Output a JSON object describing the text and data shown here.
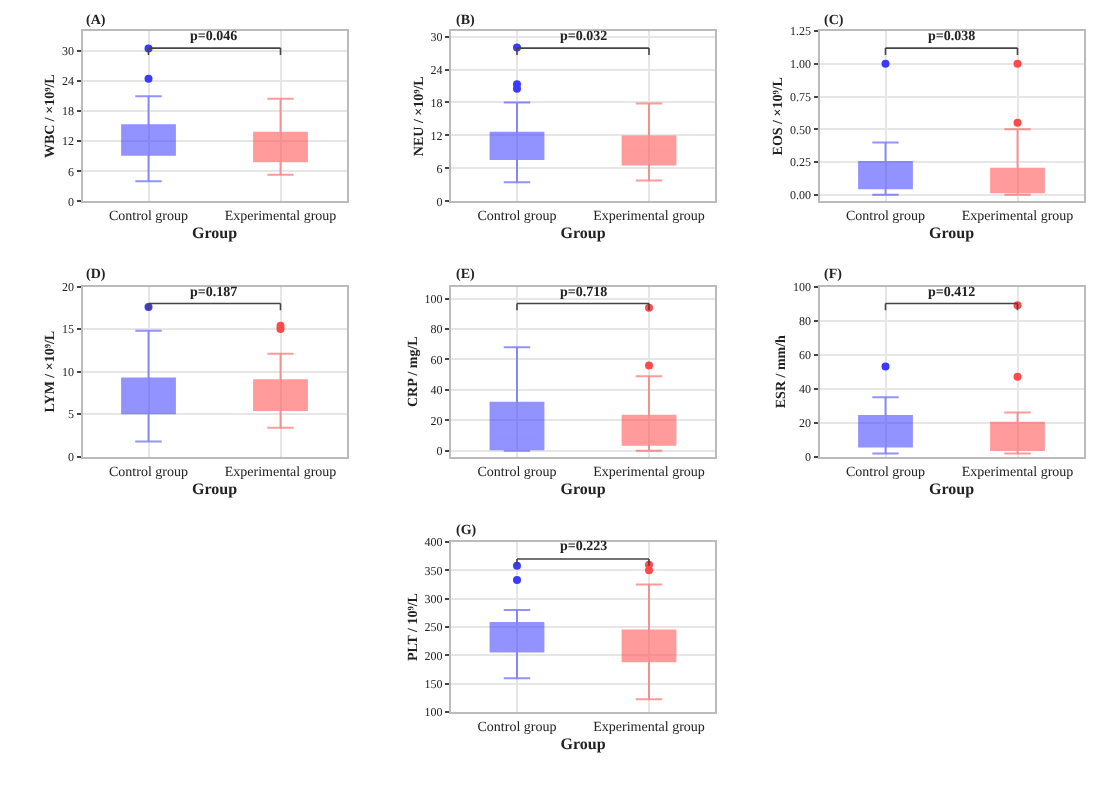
{
  "chart_data": [
    {
      "type": "box",
      "title": "(A)",
      "xlabel": "Group",
      "ylabel": "WBC / ×10⁹/L",
      "annotations": [
        "p=0.046"
      ],
      "categories": [
        "Control group",
        "Experimental group"
      ],
      "colors": [
        "#3b3bff",
        "#ff4a4a"
      ],
      "ylim": [
        0,
        34
      ],
      "yticks": [
        0,
        6,
        12,
        18,
        24,
        30
      ],
      "grid": true,
      "boxes": [
        {
          "low": 4,
          "q1": 9.3,
          "median": 13.2,
          "q3": 15.2,
          "high": 21,
          "outliers": [
            24.5,
            30.5
          ]
        },
        {
          "low": 5.3,
          "q1": 8,
          "median": 11.3,
          "q3": 13.7,
          "high": 20.5
        }
      ]
    },
    {
      "type": "box",
      "title": "(B)",
      "xlabel": "Group",
      "ylabel": "NEU / ×10⁹/L",
      "annotations": [
        "p=0.032"
      ],
      "categories": [
        "Control group",
        "Experimental group"
      ],
      "colors": [
        "#3b3bff",
        "#ff4a4a"
      ],
      "ylim": [
        0,
        31
      ],
      "yticks": [
        0,
        6,
        12,
        18,
        24,
        30
      ],
      "grid": true,
      "boxes": [
        {
          "low": 3.5,
          "q1": 7.7,
          "median": 9.5,
          "q3": 12.5,
          "high": 18,
          "outliers": [
            20.5,
            21.3,
            28
          ]
        },
        {
          "low": 3.8,
          "q1": 6.7,
          "median": 9.2,
          "q3": 11.8,
          "high": 17.8
        }
      ]
    },
    {
      "type": "box",
      "title": "(C)",
      "xlabel": "Group",
      "ylabel": "EOS / ×10⁹/L",
      "annotations": [
        "p=0.038"
      ],
      "categories": [
        "Control group",
        "Experimental group"
      ],
      "colors": [
        "#3b3bff",
        "#ff4a4a"
      ],
      "ylim": [
        -0.05,
        1.25
      ],
      "yticks": [
        {
          "value": 0,
          "label": "0.00"
        },
        {
          "value": 0.25,
          "label": "0.25"
        },
        {
          "value": 0.5,
          "label": "0.50"
        },
        {
          "value": 0.75,
          "label": "0.75"
        },
        {
          "value": 1,
          "label": "1.00"
        },
        {
          "value": 1.25,
          "label": "1.25"
        }
      ],
      "grid": true,
      "boxes": [
        {
          "low": 0,
          "q1": 0.05,
          "median": 0.1,
          "q3": 0.25,
          "high": 0.4,
          "outliers": [
            1.0
          ]
        },
        {
          "low": 0,
          "q1": 0.02,
          "median": 0.1,
          "q3": 0.2,
          "high": 0.5,
          "outliers": [
            0.55,
            1.0
          ]
        }
      ]
    },
    {
      "type": "box",
      "title": "(D)",
      "xlabel": "Group",
      "ylabel": "LYM / ×10⁹/L",
      "annotations": [
        "p=0.187"
      ],
      "categories": [
        "Control group",
        "Experimental group"
      ],
      "colors": [
        "#3b3bff",
        "#ff4a4a"
      ],
      "ylim": [
        0,
        20
      ],
      "yticks": [
        0,
        5,
        10,
        15,
        20
      ],
      "grid": true,
      "boxes": [
        {
          "low": 1.8,
          "q1": 5.1,
          "median": 7.1,
          "q3": 9.2,
          "high": 14.8,
          "outliers": [
            17.6
          ]
        },
        {
          "low": 3.4,
          "q1": 5.5,
          "median": 7.3,
          "q3": 9.0,
          "high": 12.1,
          "outliers": [
            15.0,
            15.4
          ]
        }
      ]
    },
    {
      "type": "box",
      "title": "(E)",
      "xlabel": "Group",
      "ylabel": "CRP / mg/L",
      "annotations": [
        "p=0.718"
      ],
      "categories": [
        "Control group",
        "Experimental group"
      ],
      "colors": [
        "#3b3bff",
        "#ff4a4a"
      ],
      "ylim": [
        -4,
        108
      ],
      "yticks": [
        0,
        20,
        40,
        60,
        80,
        100
      ],
      "grid": true,
      "boxes": [
        {
          "low": 0,
          "q1": 1,
          "median": 8,
          "q3": 31.5,
          "high": 68
        },
        {
          "low": 0,
          "q1": 4,
          "median": 7,
          "q3": 23,
          "high": 49,
          "outliers": [
            56,
            94
          ]
        }
      ]
    },
    {
      "type": "box",
      "title": "(F)",
      "xlabel": "Group",
      "ylabel": "ESR / mm/h",
      "annotations": [
        "p=0.412"
      ],
      "categories": [
        "Control group",
        "Experimental group"
      ],
      "colors": [
        "#3b3bff",
        "#ff4a4a"
      ],
      "ylim": [
        0,
        100
      ],
      "yticks": [
        0,
        20,
        40,
        60,
        80,
        100
      ],
      "grid": true,
      "boxes": [
        {
          "low": 2,
          "q1": 6,
          "median": 13,
          "q3": 24,
          "high": 35,
          "outliers": [
            53
          ]
        },
        {
          "low": 2,
          "q1": 4,
          "median": 8,
          "q3": 20,
          "high": 26,
          "outliers": [
            47,
            89
          ]
        }
      ]
    },
    {
      "type": "box",
      "title": "(G)",
      "xlabel": "Group",
      "ylabel": "PLT / 10⁹/L",
      "annotations": [
        "p=0.223"
      ],
      "categories": [
        "Control group",
        "Experimental group"
      ],
      "colors": [
        "#3b3bff",
        "#ff4a4a"
      ],
      "ylim": [
        100,
        400
      ],
      "yticks": [
        100,
        150,
        200,
        250,
        300,
        350,
        400
      ],
      "grid": true,
      "boxes": [
        {
          "low": 160,
          "q1": 207,
          "median": 235,
          "q3": 257,
          "high": 280,
          "outliers": [
            333,
            358
          ]
        },
        {
          "low": 123,
          "q1": 190,
          "median": 223,
          "q3": 244,
          "high": 325,
          "outliers": [
            350,
            360
          ]
        }
      ]
    }
  ]
}
